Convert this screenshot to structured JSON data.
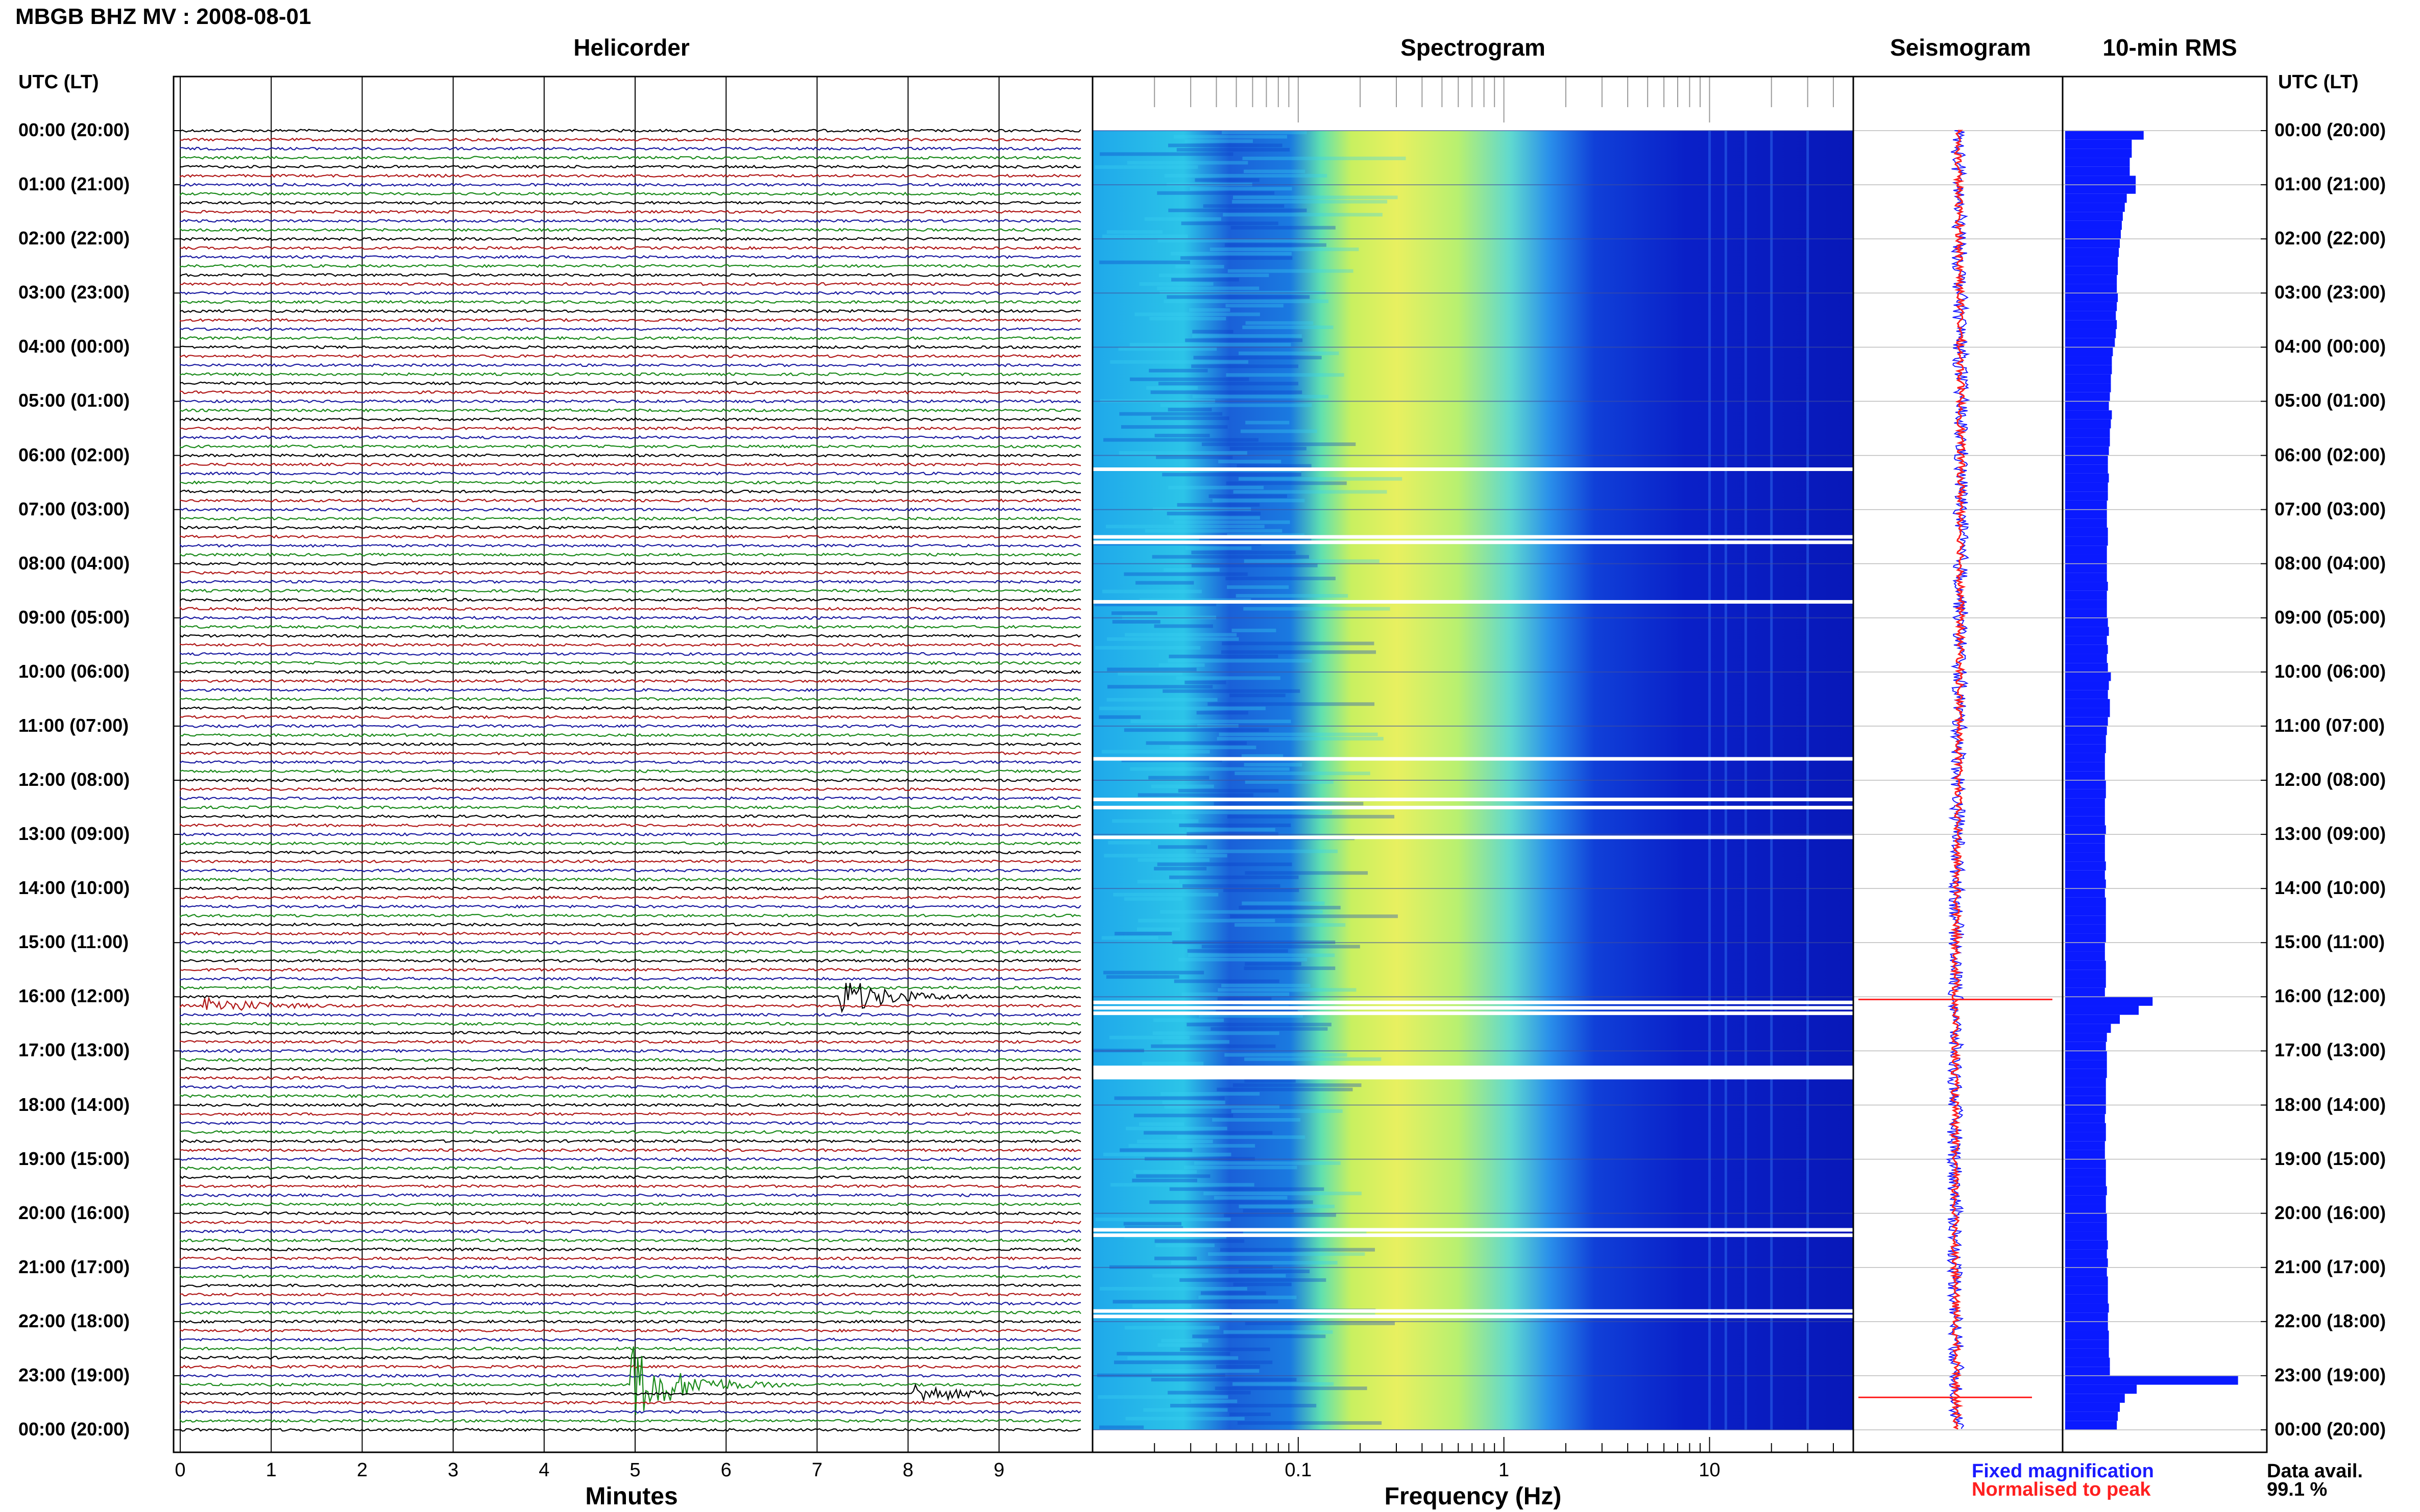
{
  "header": {
    "title": "MBGB BHZ MV : 2008-08-01"
  },
  "panels": {
    "helicorder": "Helicorder",
    "spectrogram": "Spectrogram",
    "seismogram": "Seismogram",
    "rms": "10-min RMS"
  },
  "axes": {
    "left_time_label": "UTC (LT)",
    "right_time_label": "UTC (LT)",
    "helicorder_xlabel": "Minutes",
    "spectrogram_xlabel": "Frequency (Hz)"
  },
  "legend": {
    "fixed": "Fixed magnification",
    "normalised": "Normalised to peak",
    "data_avail_label": "Data avail.",
    "data_avail_value": "99.1 %"
  },
  "colors": {
    "fixed": "#1a1aff",
    "normalised": "#ff2020",
    "rms_bar": "#0a1aff",
    "trace_colors": [
      "#000000",
      "#b01818",
      "#1a1aa0",
      "#1a8a1a"
    ]
  },
  "chart_data": [
    {
      "type": "line",
      "name": "helicorder",
      "title": "Helicorder",
      "xlabel": "Minutes",
      "x_ticks": [
        "0",
        "1",
        "2",
        "3",
        "4",
        "5",
        "6",
        "7",
        "8",
        "9"
      ],
      "xlim": [
        0,
        10
      ],
      "time_labels": [
        "00:00 (20:00)",
        "01:00 (21:00)",
        "02:00 (22:00)",
        "03:00 (23:00)",
        "04:00 (00:00)",
        "05:00 (01:00)",
        "06:00 (02:00)",
        "07:00 (03:00)",
        "08:00 (04:00)",
        "09:00 (05:00)",
        "10:00 (06:00)",
        "11:00 (07:00)",
        "12:00 (08:00)",
        "13:00 (09:00)",
        "14:00 (10:00)",
        "15:00 (11:00)",
        "16:00 (12:00)",
        "17:00 (13:00)",
        "18:00 (14:00)",
        "19:00 (15:00)",
        "20:00 (16:00)",
        "21:00 (17:00)",
        "22:00 (18:00)",
        "23:00 (19:00)",
        "00:00 (20:00)"
      ],
      "traces_per_hour": 6,
      "events": [
        {
          "hour": 16.0,
          "minute": 7.3,
          "amplitude": 3
        },
        {
          "hour": 16.1,
          "minute": 0.3,
          "amplitude": 1.5
        },
        {
          "hour": 23.1,
          "minute": 5.0,
          "amplitude": 6
        },
        {
          "hour": 23.3,
          "minute": 8.1,
          "amplitude": 1.5
        }
      ]
    },
    {
      "type": "heatmap",
      "name": "spectrogram",
      "title": "Spectrogram",
      "xlabel": "Frequency (Hz)",
      "x_scale": "log",
      "xlim": [
        0.01,
        50
      ],
      "x_ticks": [
        "0.1",
        "1",
        "10"
      ],
      "gaps_hours": [
        6.25,
        7.5,
        7.6,
        8.7,
        11.6,
        12.35,
        12.5,
        13.05,
        16.1,
        16.2,
        16.3,
        17.3,
        17.35,
        17.4,
        20.3,
        20.4,
        21.8,
        21.9
      ]
    },
    {
      "type": "line",
      "name": "seismogram",
      "title": "Seismogram",
      "series": [
        {
          "name": "Fixed magnification"
        },
        {
          "name": "Normalised to peak"
        }
      ]
    },
    {
      "type": "bar",
      "name": "rms",
      "title": "10-min RMS",
      "orientation": "horizontal",
      "values": [
        0.79,
        0.67,
        0.67,
        0.65,
        0.65,
        0.71,
        0.71,
        0.62,
        0.6,
        0.58,
        0.57,
        0.56,
        0.55,
        0.54,
        0.53,
        0.53,
        0.52,
        0.52,
        0.53,
        0.52,
        0.51,
        0.52,
        0.51,
        0.5,
        0.48,
        0.47,
        0.47,
        0.46,
        0.46,
        0.45,
        0.44,
        0.47,
        0.46,
        0.45,
        0.45,
        0.44,
        0.43,
        0.43,
        0.44,
        0.43,
        0.43,
        0.42,
        0.42,
        0.42,
        0.43,
        0.43,
        0.42,
        0.42,
        0.42,
        0.42,
        0.43,
        0.42,
        0.42,
        0.42,
        0.43,
        0.44,
        0.42,
        0.43,
        0.42,
        0.43,
        0.46,
        0.44,
        0.43,
        0.45,
        0.45,
        0.43,
        0.42,
        0.41,
        0.41,
        0.4,
        0.4,
        0.4,
        0.41,
        0.41,
        0.4,
        0.4,
        0.4,
        0.41,
        0.4,
        0.4,
        0.4,
        0.41,
        0.4,
        0.41,
        0.4,
        0.41,
        0.41,
        0.41,
        0.41,
        0.41,
        0.4,
        0.4,
        0.41,
        0.41,
        0.41,
        0.4,
        0.88,
        0.74,
        0.55,
        0.46,
        0.42,
        0.41,
        0.42,
        0.42,
        0.42,
        0.41,
        0.41,
        0.41,
        0.41,
        0.4,
        0.41,
        0.41,
        0.4,
        0.4,
        0.41,
        0.41,
        0.41,
        0.42,
        0.41,
        0.41,
        0.42,
        0.42,
        0.42,
        0.43,
        0.42,
        0.43,
        0.42,
        0.43,
        0.43,
        0.43,
        0.44,
        0.43,
        0.43,
        0.44,
        0.44,
        0.44,
        0.45,
        0.45,
        1.74,
        0.72,
        0.6,
        0.55,
        0.53,
        0.52
      ]
    }
  ]
}
